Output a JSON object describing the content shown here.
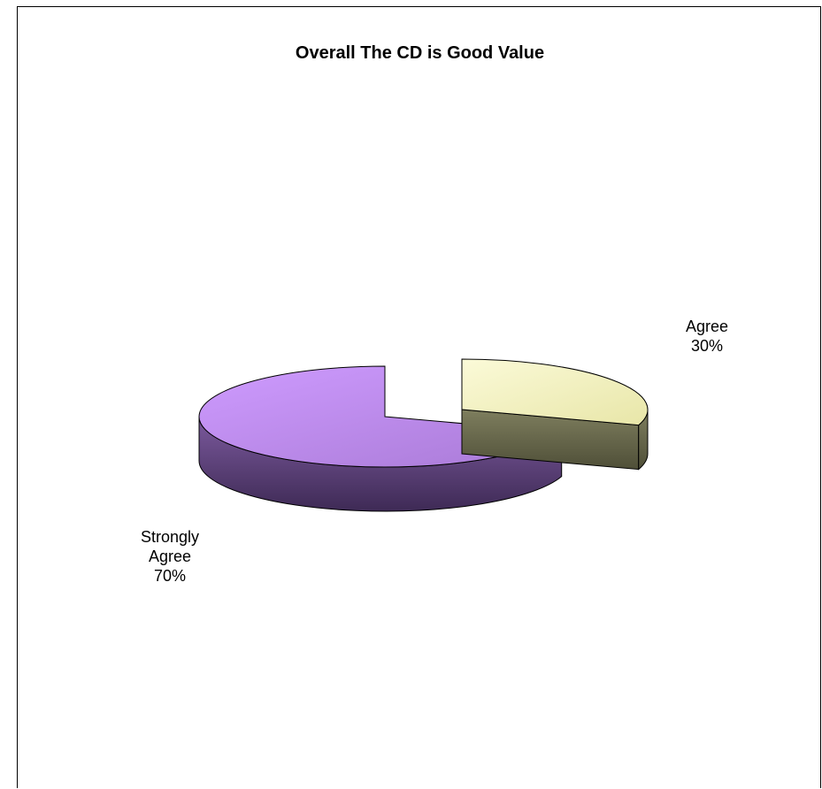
{
  "chart_data": {
    "type": "pie",
    "style": "3d-exploded",
    "title": "Overall The CD is Good Value",
    "slices": [
      {
        "name": "Agree",
        "value": 30,
        "label_lines": [
          "Agree",
          "30%"
        ],
        "color": "#F7F5C0"
      },
      {
        "name": "Strongly Agree",
        "value": 70,
        "label_lines": [
          "Strongly",
          "Agree",
          "70%"
        ],
        "color": "#C795F8"
      }
    ],
    "legend": "none"
  }
}
